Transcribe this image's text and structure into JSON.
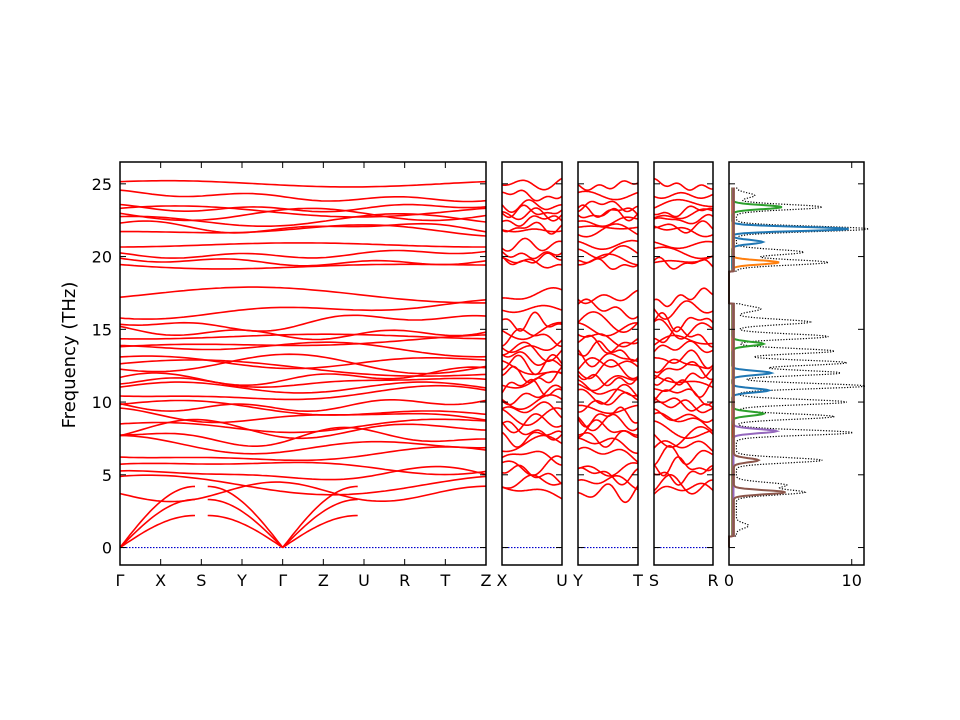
{
  "chart_data": {
    "type": "line",
    "ylabel": "Frequency (THz)",
    "ylim": [
      -1.2,
      26.5
    ],
    "yticks": [
      0,
      5,
      10,
      15,
      20,
      25
    ],
    "colors": {
      "bands": "#ff0000",
      "zero_line": "#0000cc",
      "dos_total": "#000000",
      "dos_partial": [
        "#1f77b4",
        "#ff7f0e",
        "#2ca02c",
        "#d62728",
        "#9467bd",
        "#8c564b"
      ]
    },
    "band_segments": [
      {
        "labels": [
          "Γ",
          "X",
          "S",
          "Y",
          "Γ",
          "Z",
          "U",
          "R",
          "T",
          "Z"
        ]
      },
      {
        "labels": [
          "X",
          "U"
        ]
      },
      {
        "labels": [
          "Y",
          "T"
        ]
      },
      {
        "labels": [
          "S",
          "R"
        ]
      }
    ],
    "band_reference_frequencies": [
      19.5,
      19.8,
      20.3,
      20.8,
      21.8,
      22.0,
      22.5,
      22.9,
      23.1,
      23.5,
      24.2,
      25.0,
      3.8,
      4.3,
      5.0,
      5.6,
      6.3,
      7.0,
      7.6,
      8.1,
      8.6,
      9.0,
      9.5,
      10.0,
      10.5,
      11.0,
      11.4,
      11.8,
      12.2,
      12.6,
      13.0,
      13.5,
      14.0,
      14.5,
      15.0,
      15.5,
      16.4,
      17.2
    ],
    "dos": {
      "xlim": [
        0,
        11
      ],
      "xticks": [
        0,
        10
      ],
      "total_peaks": [
        {
          "freq": 1.5,
          "value": 1.0
        },
        {
          "freq": 3.8,
          "value": 5.5
        },
        {
          "freq": 4.3,
          "value": 4.0
        },
        {
          "freq": 6.0,
          "value": 7.0
        },
        {
          "freq": 7.9,
          "value": 9.5
        },
        {
          "freq": 9.0,
          "value": 8.0
        },
        {
          "freq": 10.0,
          "value": 9.0
        },
        {
          "freq": 11.1,
          "value": 10.5
        },
        {
          "freq": 12.0,
          "value": 8.5
        },
        {
          "freq": 12.7,
          "value": 9.0
        },
        {
          "freq": 13.5,
          "value": 8.0
        },
        {
          "freq": 14.5,
          "value": 7.5
        },
        {
          "freq": 15.5,
          "value": 6.0
        },
        {
          "freq": 16.4,
          "value": 2.0
        },
        {
          "freq": 19.6,
          "value": 7.5
        },
        {
          "freq": 20.3,
          "value": 5.5
        },
        {
          "freq": 21.9,
          "value": 10.8
        },
        {
          "freq": 23.4,
          "value": 7.0
        },
        {
          "freq": 24.2,
          "value": 1.5
        }
      ],
      "partial_peaks": [
        {
          "freq": 3.8,
          "value": 4.2,
          "series": 5
        },
        {
          "freq": 6.0,
          "value": 2.0,
          "series": 5
        },
        {
          "freq": 8.0,
          "value": 3.5,
          "series": 4
        },
        {
          "freq": 9.2,
          "value": 2.5,
          "series": 2
        },
        {
          "freq": 10.8,
          "value": 3.0,
          "series": 0
        },
        {
          "freq": 12.0,
          "value": 3.2,
          "series": 0
        },
        {
          "freq": 14.0,
          "value": 2.5,
          "series": 2
        },
        {
          "freq": 19.6,
          "value": 3.8,
          "series": 1
        },
        {
          "freq": 21.0,
          "value": 2.5,
          "series": 0
        },
        {
          "freq": 21.9,
          "value": 9.5,
          "series": 0
        },
        {
          "freq": 23.4,
          "value": 4.0,
          "series": 2
        }
      ]
    }
  }
}
